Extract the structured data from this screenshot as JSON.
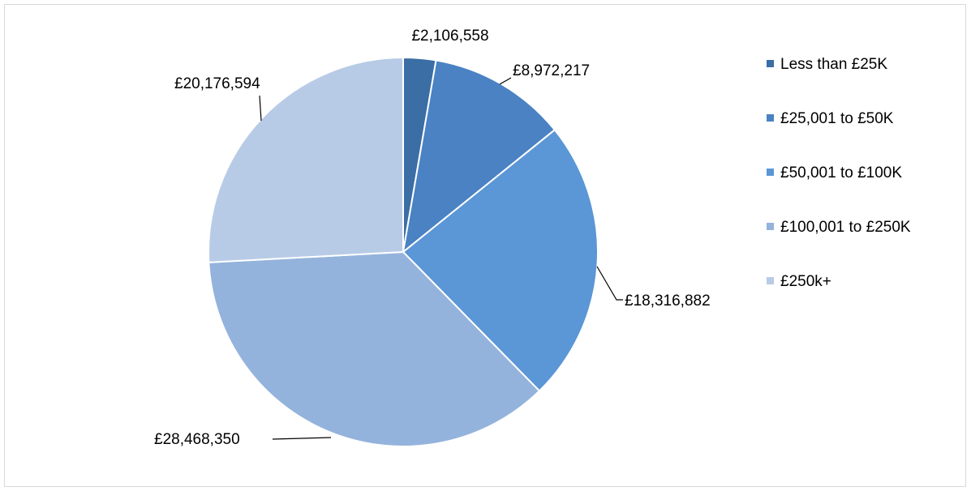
{
  "chart_data": {
    "type": "pie",
    "title": "",
    "categories": [
      "Less than £25K",
      "£25,001 to £50K",
      "£50,001 to £100K",
      "£100,001 to £250K",
      "£250k+"
    ],
    "values": [
      2106558,
      8972217,
      18316882,
      28468350,
      20176594
    ],
    "data_labels": [
      "£2,106,558",
      "£8,972,217",
      "£18,316,882",
      "£28,468,350",
      "£20,176,594"
    ],
    "colors": [
      "#3a6ea5",
      "#4a82c3",
      "#5b96d6",
      "#94b3dc",
      "#b8cbe6"
    ],
    "start_angle_deg": 0,
    "direction": "clockwise",
    "legend_position": "right"
  }
}
